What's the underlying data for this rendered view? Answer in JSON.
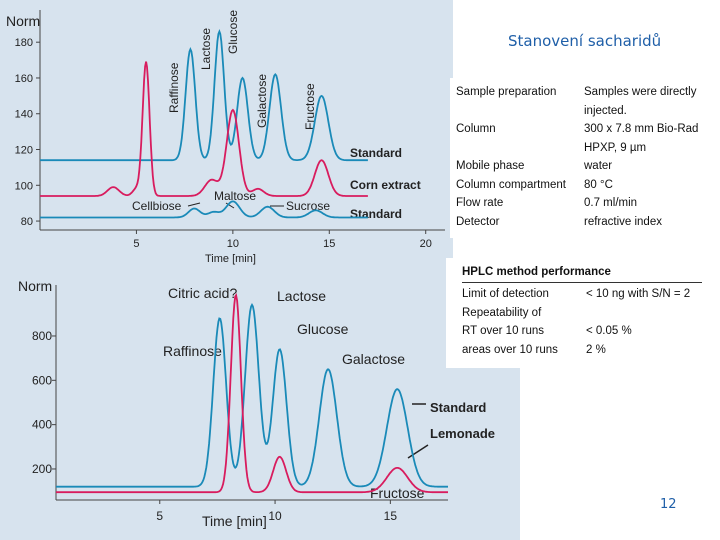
{
  "slide": {
    "title": "Stanovení sacharidů",
    "page_number": "12"
  },
  "params_table": [
    {
      "label": "Sample preparation",
      "value": "Samples were directly"
    },
    {
      "label": "",
      "value": "injected."
    },
    {
      "label": "Column",
      "value": "300 x 7.8 mm Bio-Rad"
    },
    {
      "label": "",
      "value": "HPXP, 9 µm"
    },
    {
      "label": "Mobile phase",
      "value": "water"
    },
    {
      "label": "Column compartment",
      "value": "80 °C"
    },
    {
      "label": "Flow rate",
      "value": "0.7 ml/min"
    },
    {
      "label": "Detector",
      "value": "refractive index"
    }
  ],
  "performance_table": {
    "title": "HPLC method performance",
    "rows": [
      {
        "label": "Limit of detection",
        "value": "< 10 ng with S/N = 2"
      },
      {
        "label": "Repeatability of",
        "value": ""
      },
      {
        "label": "RT over 10 runs",
        "value": "< 0.05 %"
      },
      {
        "label": "areas over 10 runs",
        "value": "2 %"
      }
    ]
  },
  "chart_data": [
    {
      "type": "line",
      "ylabel": "Norm",
      "xlabel": "Time [min]",
      "xlim": [
        0,
        21
      ],
      "ylim": [
        75,
        198
      ],
      "xticks": [
        "5",
        "10",
        "15",
        "20"
      ],
      "yticks": [
        "180",
        "160",
        "140",
        "120",
        "100",
        "80"
      ],
      "colors": {
        "blue": "#1a8ab8",
        "red": "#d81c5e"
      },
      "series": [
        {
          "name": "Standard",
          "color": "blue",
          "baseline": 114,
          "peaks": [
            [
              7.8,
              62,
              0.25
            ],
            [
              9.3,
              72,
              0.25
            ],
            [
              10.5,
              46,
              0.28
            ],
            [
              12.2,
              48,
              0.3
            ],
            [
              14.6,
              36,
              0.35
            ]
          ]
        },
        {
          "name": "Corn extract",
          "color": "red",
          "baseline": 94,
          "peaks": [
            [
              3.8,
              5,
              0.3
            ],
            [
              5.5,
              75,
              0.18
            ],
            [
              5.0,
              4,
              0.2
            ],
            [
              8.9,
              9,
              0.35
            ],
            [
              10.0,
              48,
              0.32
            ],
            [
              11.3,
              4,
              0.3
            ],
            [
              14.6,
              20,
              0.35
            ]
          ]
        },
        {
          "name": "Standard",
          "color": "blue",
          "baseline": 82,
          "peaks": [
            [
              8.0,
              5,
              0.3
            ],
            [
              9.0,
              3,
              0.3
            ],
            [
              10.0,
              9,
              0.35
            ],
            [
              11.8,
              6,
              0.35
            ],
            [
              14.3,
              4,
              0.35
            ]
          ]
        }
      ],
      "peak_labels": [
        "Raffinose",
        "Lactose",
        "Glucose",
        "Galactose",
        "Fructose",
        "Cellbiose",
        "Maltose",
        "Sucrose"
      ]
    },
    {
      "type": "line",
      "ylabel": "Norm",
      "xlabel": "Time [min]",
      "xlim": [
        0.5,
        17.5
      ],
      "ylim": [
        60,
        1030
      ],
      "xticks": [
        "5",
        "10",
        "15"
      ],
      "yticks": [
        "800",
        "600",
        "400",
        "200"
      ],
      "colors": {
        "blue": "#1a8ab8",
        "red": "#d81c5e"
      },
      "series": [
        {
          "name": "Standard",
          "color": "blue",
          "baseline": 120,
          "peaks": [
            [
              7.6,
              760,
              0.28
            ],
            [
              9.0,
              820,
              0.3
            ],
            [
              10.2,
              620,
              0.3
            ],
            [
              12.3,
              530,
              0.38
            ],
            [
              15.3,
              440,
              0.45
            ]
          ]
        },
        {
          "name": "Lemonade",
          "color": "red",
          "baseline": 95,
          "peaks": [
            [
              8.3,
              890,
              0.22
            ],
            [
              10.2,
              160,
              0.28
            ],
            [
              15.3,
              110,
              0.45
            ]
          ]
        }
      ],
      "peak_labels": [
        "Citric acid?",
        "Lactose",
        "Glucose",
        "Raffinose",
        "Galactose",
        "Fructose"
      ]
    }
  ]
}
